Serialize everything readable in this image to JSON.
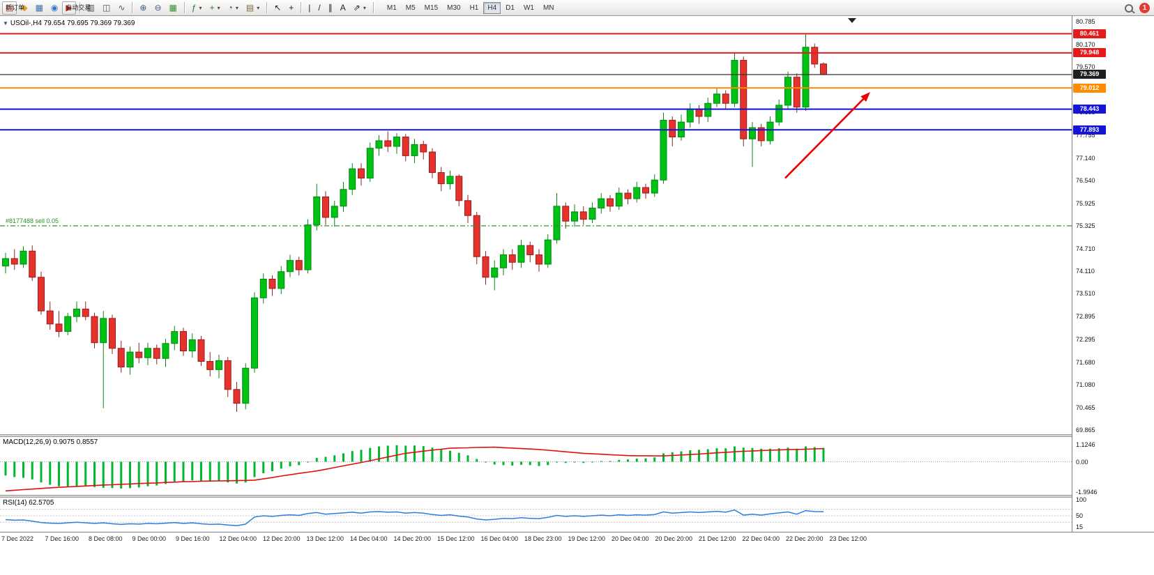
{
  "toolbar": {
    "items": [
      {
        "name": "new-order-button",
        "icon_name": "new-order-icon",
        "glyph": "▤",
        "glyph_color": "#b8402e",
        "label": "新订单",
        "raised": true
      },
      {
        "name": "market-watch-button",
        "icon_name": "market-watch-icon",
        "glyph": "◆",
        "glyph_color": "#dfa126"
      },
      {
        "name": "data-window-button",
        "icon_name": "data-window-icon",
        "glyph": "▦",
        "glyph_color": "#3b6fb5"
      },
      {
        "name": "navigator-button",
        "icon_name": "navigator-icon",
        "glyph": "◉",
        "glyph_color": "#2e7dd1"
      },
      {
        "name": "autotrade-button",
        "icon_name": "autotrade-icon",
        "glyph": "▶",
        "glyph_color": "#c22721",
        "label": "自动交易",
        "raised": true
      },
      {
        "sep": true
      },
      {
        "name": "bar-chart-button",
        "icon_name": "bar-chart-icon",
        "glyph": "▥",
        "glyph_color": "#4a5a66"
      },
      {
        "name": "candle-chart-button",
        "icon_name": "candlestick-chart-icon",
        "glyph": "◫",
        "glyph_color": "#4a5a66"
      },
      {
        "name": "line-chart-button",
        "icon_name": "line-chart-icon",
        "glyph": "∿",
        "glyph_color": "#4a5a66"
      },
      {
        "sep": true
      },
      {
        "name": "zoom-in-button",
        "icon_name": "zoom-in-icon",
        "glyph": "⊕",
        "glyph_color": "#3a5a8c"
      },
      {
        "name": "zoom-out-button",
        "icon_name": "zoom-out-icon",
        "glyph": "⊖",
        "glyph_color": "#3a5a8c"
      },
      {
        "name": "tile-windows-button",
        "icon_name": "tile-windows-icon",
        "glyph": "▦",
        "glyph_color": "#2f8f2f"
      },
      {
        "sep": true
      },
      {
        "name": "indicators-button",
        "icon_name": "indicators-icon",
        "glyph": "ƒ",
        "glyph_color": "#1b7a2f",
        "caret": true
      },
      {
        "name": "new-chart-button",
        "icon_name": "new-chart-icon",
        "glyph": "+",
        "glyph_color": "#1b8a1b",
        "caret": true
      },
      {
        "name": "periods-button",
        "icon_name": "clock-icon",
        "glyph": "◔",
        "glyph_color": "#4a5a66",
        "caret": true
      },
      {
        "name": "templates-button",
        "icon_name": "template-icon",
        "glyph": "▤",
        "glyph_color": "#7a6a3a",
        "caret": true
      },
      {
        "sep": true
      },
      {
        "name": "cursor-button",
        "icon_name": "cursor-icon",
        "glyph": "↖",
        "glyph_color": "#222"
      },
      {
        "name": "crosshair-button",
        "icon_name": "crosshair-icon",
        "glyph": "+",
        "glyph_color": "#222"
      },
      {
        "sep": true
      },
      {
        "name": "vertical-line-button",
        "icon_name": "vertical-line-icon",
        "glyph": "|",
        "glyph_color": "#222"
      },
      {
        "name": "trendline-button",
        "icon_name": "trendline-icon",
        "glyph": "/",
        "glyph_color": "#222"
      },
      {
        "name": "channel-button",
        "icon_name": "equidistant-channel-icon",
        "glyph": "∥",
        "glyph_color": "#222"
      },
      {
        "name": "text-button",
        "icon_name": "text-icon",
        "glyph": "A",
        "glyph_color": "#222"
      },
      {
        "name": "arrows-button",
        "icon_name": "arrow-tool-icon",
        "glyph": "⇗",
        "glyph_color": "#222",
        "caret": true
      },
      {
        "sep": true
      }
    ],
    "timeframes": [
      "M1",
      "M5",
      "M15",
      "M30",
      "H1",
      "H4",
      "D1",
      "W1",
      "MN"
    ],
    "active_timeframe": "H4",
    "notification_count": "1"
  },
  "chart": {
    "symbol_info": "USOil-,H4  79.654 79.695 79.369 79.369",
    "order_line": {
      "label": "#8177488 sell 0.05",
      "price": 75.325
    },
    "price_axis_ticks": [
      "80.785",
      "80.170",
      "79.570",
      "78.955",
      "78.355",
      "77.755",
      "77.140",
      "76.540",
      "75.925",
      "75.325",
      "74.710",
      "74.110",
      "73.510",
      "72.895",
      "72.295",
      "71.680",
      "71.080",
      "70.465",
      "69.865"
    ],
    "price_line_labels": [
      {
        "value": "80.461",
        "price": 80.461,
        "color": "#e51b1b"
      },
      {
        "value": "79.948",
        "price": 79.948,
        "color": "#e51b1b"
      },
      {
        "value": "79.369",
        "price": 79.369,
        "color": "#1f1f1f"
      },
      {
        "value": "79.012",
        "price": 79.012,
        "color": "#ff8c00"
      },
      {
        "value": "78.443",
        "price": 78.443,
        "color": "#1414d6"
      },
      {
        "value": "77.893",
        "price": 77.893,
        "color": "#1414d6"
      }
    ],
    "time_labels": [
      "7 Dec 2022",
      "7 Dec 16:00",
      "8 Dec 08:00",
      "9 Dec 00:00",
      "9 Dec 16:00",
      "12 Dec 04:00",
      "12 Dec 20:00",
      "13 Dec 12:00",
      "14 Dec 04:00",
      "14 Dec 20:00",
      "15 Dec 12:00",
      "16 Dec 04:00",
      "18 Dec 23:00",
      "19 Dec 12:00",
      "20 Dec 04:00",
      "20 Dec 20:00",
      "21 Dec 12:00",
      "22 Dec 04:00",
      "22 Dec 20:00",
      "23 Dec 12:00"
    ]
  },
  "macd": {
    "label": "MACD(12,26,9) 0.9075 0.8557",
    "axis_ticks": [
      "1.1246",
      "0.00",
      "-1.9946"
    ]
  },
  "rsi": {
    "label": "RSI(14) 62.5705",
    "axis_ticks": [
      "100",
      "50",
      "15"
    ]
  },
  "colors": {
    "candle_up": "#00c214",
    "candle_up_border": "#048a10",
    "candle_down": "#e5322c",
    "candle_down_border": "#97201c",
    "line_red": "#e51b1b",
    "line_orange": "#ff8c00",
    "line_blue": "#1414d6",
    "line_black": "#333333",
    "order_green": "#1ea01e",
    "macd_hist": "#00b82e",
    "macd_signal": "#e01010",
    "rsi_line": "#2a7fde",
    "arrow_red": "#ee0000"
  },
  "chart_data": {
    "type": "candlestick",
    "symbol": "USOil-",
    "timeframe": "H4",
    "quote": {
      "open": 79.654,
      "high": 79.695,
      "low": 79.369,
      "close": 79.369
    },
    "y_axis_range": [
      69.865,
      80.785
    ],
    "candles": [
      [
        74.25,
        74.6,
        74.05,
        74.45
      ],
      [
        74.45,
        74.7,
        74.15,
        74.3
      ],
      [
        74.3,
        74.78,
        74.2,
        74.65
      ],
      [
        74.65,
        74.8,
        73.85,
        73.95
      ],
      [
        73.95,
        74.1,
        72.95,
        73.05
      ],
      [
        73.05,
        73.3,
        72.55,
        72.7
      ],
      [
        72.7,
        73.05,
        72.35,
        72.5
      ],
      [
        72.5,
        73.0,
        72.4,
        72.9
      ],
      [
        72.9,
        73.3,
        72.75,
        73.1
      ],
      [
        73.1,
        73.3,
        72.8,
        72.9
      ],
      [
        72.9,
        73.0,
        72.05,
        72.2
      ],
      [
        72.2,
        73.05,
        70.45,
        72.85
      ],
      [
        72.85,
        72.95,
        71.9,
        72.05
      ],
      [
        72.05,
        72.25,
        71.4,
        71.55
      ],
      [
        71.55,
        72.1,
        71.35,
        71.95
      ],
      [
        71.95,
        72.2,
        71.65,
        71.8
      ],
      [
        71.8,
        72.2,
        71.6,
        72.05
      ],
      [
        72.05,
        72.15,
        71.62,
        71.78
      ],
      [
        71.78,
        72.3,
        71.55,
        72.18
      ],
      [
        72.18,
        72.65,
        72.0,
        72.5
      ],
      [
        72.5,
        72.6,
        71.85,
        71.98
      ],
      [
        71.98,
        72.45,
        71.8,
        72.28
      ],
      [
        72.28,
        72.38,
        71.58,
        71.7
      ],
      [
        71.7,
        71.95,
        71.3,
        71.48
      ],
      [
        71.48,
        71.88,
        71.25,
        71.72
      ],
      [
        71.72,
        71.82,
        70.75,
        70.95
      ],
      [
        70.95,
        71.15,
        70.35,
        70.58
      ],
      [
        70.58,
        71.65,
        70.42,
        71.52
      ],
      [
        71.52,
        73.55,
        71.4,
        73.4
      ],
      [
        73.4,
        74.05,
        73.25,
        73.9
      ],
      [
        73.9,
        74.0,
        73.45,
        73.65
      ],
      [
        73.65,
        74.25,
        73.5,
        74.1
      ],
      [
        74.1,
        74.55,
        73.95,
        74.4
      ],
      [
        74.4,
        74.5,
        74.0,
        74.15
      ],
      [
        74.15,
        75.5,
        74.05,
        75.35
      ],
      [
        75.35,
        76.45,
        75.2,
        76.1
      ],
      [
        76.1,
        76.25,
        75.35,
        75.55
      ],
      [
        75.55,
        76.0,
        75.3,
        75.85
      ],
      [
        75.85,
        76.5,
        75.7,
        76.3
      ],
      [
        76.3,
        77.0,
        76.15,
        76.85
      ],
      [
        76.85,
        77.0,
        76.4,
        76.6
      ],
      [
        76.6,
        77.55,
        76.5,
        77.4
      ],
      [
        77.4,
        77.75,
        77.2,
        77.6
      ],
      [
        77.6,
        77.85,
        77.3,
        77.45
      ],
      [
        77.45,
        77.8,
        77.25,
        77.7
      ],
      [
        77.7,
        77.78,
        77.05,
        77.2
      ],
      [
        77.2,
        77.65,
        77.0,
        77.5
      ],
      [
        77.5,
        77.6,
        77.1,
        77.3
      ],
      [
        77.3,
        77.4,
        76.6,
        76.75
      ],
      [
        76.75,
        76.9,
        76.25,
        76.45
      ],
      [
        76.45,
        76.8,
        76.3,
        76.65
      ],
      [
        76.65,
        76.7,
        75.85,
        76.0
      ],
      [
        76.0,
        76.15,
        75.4,
        75.6
      ],
      [
        75.6,
        75.7,
        74.3,
        74.5
      ],
      [
        74.5,
        74.65,
        73.75,
        73.95
      ],
      [
        73.95,
        74.4,
        73.6,
        74.2
      ],
      [
        74.2,
        74.7,
        74.0,
        74.55
      ],
      [
        74.55,
        74.7,
        74.15,
        74.35
      ],
      [
        74.35,
        74.95,
        74.2,
        74.8
      ],
      [
        74.8,
        74.9,
        74.35,
        74.55
      ],
      [
        74.55,
        74.7,
        74.1,
        74.3
      ],
      [
        74.3,
        75.1,
        74.2,
        74.95
      ],
      [
        74.95,
        76.2,
        74.85,
        75.85
      ],
      [
        75.85,
        75.95,
        75.25,
        75.45
      ],
      [
        75.45,
        75.9,
        75.3,
        75.7
      ],
      [
        75.7,
        75.85,
        75.35,
        75.5
      ],
      [
        75.5,
        75.95,
        75.4,
        75.8
      ],
      [
        75.8,
        76.2,
        75.65,
        76.05
      ],
      [
        76.05,
        76.15,
        75.7,
        75.85
      ],
      [
        75.85,
        76.35,
        75.75,
        76.2
      ],
      [
        76.2,
        76.3,
        75.9,
        76.05
      ],
      [
        76.05,
        76.5,
        75.95,
        76.35
      ],
      [
        76.35,
        76.45,
        76.05,
        76.2
      ],
      [
        76.2,
        76.7,
        76.1,
        76.55
      ],
      [
        76.55,
        78.35,
        76.45,
        78.15
      ],
      [
        78.15,
        78.25,
        77.45,
        77.7
      ],
      [
        77.7,
        78.3,
        77.6,
        78.1
      ],
      [
        78.1,
        78.6,
        77.95,
        78.45
      ],
      [
        78.45,
        78.55,
        78.05,
        78.25
      ],
      [
        78.25,
        78.75,
        78.1,
        78.6
      ],
      [
        78.6,
        79.0,
        78.5,
        78.85
      ],
      [
        78.85,
        78.95,
        78.45,
        78.6
      ],
      [
        78.6,
        79.95,
        78.5,
        79.75
      ],
      [
        79.75,
        79.85,
        77.45,
        77.65
      ],
      [
        77.65,
        78.1,
        76.9,
        77.95
      ],
      [
        77.95,
        78.05,
        77.45,
        77.6
      ],
      [
        77.6,
        78.25,
        77.5,
        78.1
      ],
      [
        78.1,
        78.7,
        78.0,
        78.55
      ],
      [
        78.55,
        79.45,
        78.45,
        79.3
      ],
      [
        79.3,
        79.4,
        78.35,
        78.5
      ],
      [
        78.5,
        80.47,
        78.4,
        80.1
      ],
      [
        80.1,
        80.2,
        79.55,
        79.65
      ],
      [
        79.654,
        79.695,
        79.369,
        79.369
      ]
    ],
    "horizontal_lines": [
      {
        "price": 80.461,
        "color": "red",
        "style": "solid"
      },
      {
        "price": 79.948,
        "color": "red",
        "style": "solid"
      },
      {
        "price": 79.369,
        "color": "black",
        "style": "solid"
      },
      {
        "price": 79.012,
        "color": "orange",
        "style": "solid"
      },
      {
        "price": 78.443,
        "color": "blue",
        "style": "solid"
      },
      {
        "price": 77.893,
        "color": "blue",
        "style": "solid"
      },
      {
        "price": 75.325,
        "color": "green",
        "style": "dash",
        "label": "#8177488 sell 0.05"
      }
    ],
    "annotations": [
      {
        "type": "arrow",
        "color": "red",
        "from_price": 76.6,
        "to_price": 78.9,
        "note": "upward trend arrow"
      }
    ],
    "time_labels": [
      "7 Dec 2022",
      "7 Dec 16:00",
      "8 Dec 08:00",
      "9 Dec 00:00",
      "9 Dec 16:00",
      "12 Dec 04:00",
      "12 Dec 20:00",
      "13 Dec 12:00",
      "14 Dec 04:00",
      "14 Dec 20:00",
      "15 Dec 12:00",
      "16 Dec 04:00",
      "18 Dec 23:00",
      "19 Dec 12:00",
      "20 Dec 04:00",
      "20 Dec 20:00",
      "21 Dec 12:00",
      "22 Dec 04:00",
      "22 Dec 20:00",
      "23 Dec 12:00"
    ],
    "indicators": [
      {
        "name": "MACD",
        "params": [
          12,
          26,
          9
        ],
        "current": [
          0.9075,
          0.8557
        ],
        "range": [
          -1.9946,
          1.1246
        ],
        "histogram": [
          -0.9,
          -1.0,
          -1.05,
          -1.15,
          -1.35,
          -1.5,
          -1.6,
          -1.62,
          -1.6,
          -1.58,
          -1.65,
          -1.7,
          -1.72,
          -1.75,
          -1.72,
          -1.68,
          -1.6,
          -1.55,
          -1.45,
          -1.32,
          -1.3,
          -1.22,
          -1.25,
          -1.3,
          -1.28,
          -1.35,
          -1.42,
          -1.35,
          -1.0,
          -0.75,
          -0.62,
          -0.45,
          -0.3,
          -0.22,
          0.0,
          0.25,
          0.32,
          0.42,
          0.55,
          0.7,
          0.78,
          0.9,
          1.0,
          1.05,
          1.08,
          1.05,
          1.06,
          1.02,
          0.92,
          0.8,
          0.72,
          0.58,
          0.42,
          0.18,
          -0.05,
          -0.18,
          -0.22,
          -0.25,
          -0.2,
          -0.22,
          -0.28,
          -0.22,
          -0.05,
          -0.08,
          -0.05,
          -0.08,
          -0.02,
          0.05,
          0.05,
          0.12,
          0.15,
          0.2,
          0.22,
          0.28,
          0.55,
          0.62,
          0.68,
          0.75,
          0.78,
          0.82,
          0.88,
          0.88,
          1.0,
          0.92,
          0.9,
          0.85,
          0.85,
          0.88,
          0.92,
          0.85,
          1.0,
          0.95,
          0.9075
        ],
        "signal": [
          -1.9,
          -1.86,
          -1.82,
          -1.78,
          -1.74,
          -1.7,
          -1.67,
          -1.64,
          -1.61,
          -1.58,
          -1.55,
          -1.52,
          -1.5,
          -1.47,
          -1.45,
          -1.42,
          -1.4,
          -1.38,
          -1.35,
          -1.33,
          -1.3,
          -1.29,
          -1.27,
          -1.26,
          -1.25,
          -1.24,
          -1.23,
          -1.22,
          -1.2,
          -1.12,
          -1.03,
          -0.93,
          -0.85,
          -0.76,
          -0.68,
          -0.6,
          -0.49,
          -0.38,
          -0.27,
          -0.16,
          -0.05,
          0.07,
          0.19,
          0.31,
          0.43,
          0.55,
          0.62,
          0.69,
          0.76,
          0.82,
          0.88,
          0.9,
          0.91,
          0.93,
          0.94,
          0.95,
          0.92,
          0.89,
          0.86,
          0.83,
          0.8,
          0.75,
          0.7,
          0.65,
          0.6,
          0.55,
          0.52,
          0.49,
          0.46,
          0.43,
          0.4,
          0.39,
          0.39,
          0.38,
          0.38,
          0.41,
          0.44,
          0.47,
          0.5,
          0.54,
          0.58,
          0.61,
          0.65,
          0.68,
          0.7,
          0.73,
          0.75,
          0.77,
          0.79,
          0.8,
          0.82,
          0.84,
          0.8557
        ]
      },
      {
        "name": "RSI",
        "params": [
          14
        ],
        "current": 62.5705,
        "levels": [
          70,
          50,
          30
        ],
        "line": [
          38,
          36,
          37,
          33,
          29,
          27,
          26,
          28,
          30,
          28,
          26,
          28,
          25,
          23,
          25,
          24,
          26,
          25,
          27,
          29,
          26,
          28,
          25,
          23,
          24,
          21,
          19,
          24,
          46,
          50,
          48,
          51,
          53,
          51,
          57,
          60,
          55,
          57,
          59,
          61,
          58,
          62,
          63,
          61,
          62,
          58,
          60,
          58,
          54,
          51,
          53,
          49,
          46,
          40,
          37,
          39,
          42,
          41,
          44,
          42,
          41,
          45,
          51,
          48,
          50,
          48,
          50,
          52,
          50,
          53,
          51,
          53,
          52,
          54,
          62,
          58,
          60,
          62,
          60,
          62,
          64,
          61,
          68,
          52,
          55,
          52,
          56,
          59,
          62,
          55,
          66,
          63,
          62.57
        ]
      }
    ]
  }
}
